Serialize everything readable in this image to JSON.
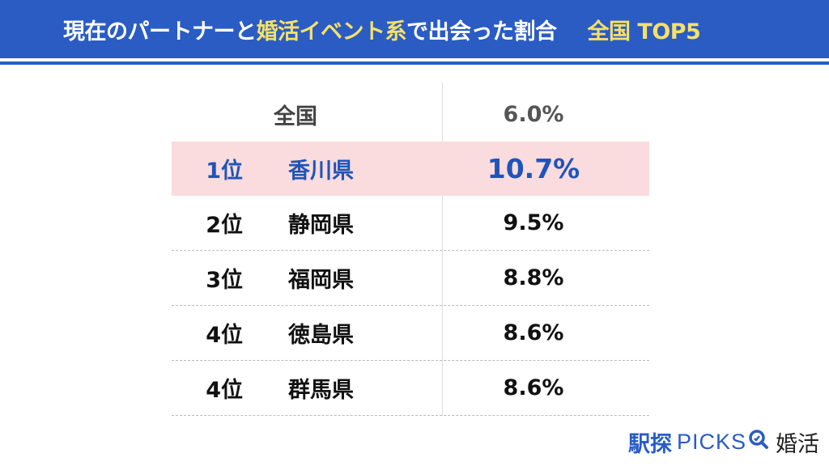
{
  "header": {
    "title_part1": "現在のパートナーと",
    "title_highlight": "婚活イベント系",
    "title_part2": "で出会った割合",
    "scope": "全国 TOP5"
  },
  "colors": {
    "header_bg": "#2a5cc4",
    "highlight_text": "#f5e06a",
    "top_row_bg": "#fadbde",
    "top_row_text": "#1f55b8"
  },
  "chart_data": {
    "type": "table",
    "title": "現在のパートナーと婚活イベント系で出会った割合　全国 TOP5",
    "national": {
      "label": "全国",
      "value": "6.0%"
    },
    "rows": [
      {
        "rank": "1位",
        "prefecture": "香川県",
        "value": "10.7%"
      },
      {
        "rank": "2位",
        "prefecture": "静岡県",
        "value": "9.5%"
      },
      {
        "rank": "3位",
        "prefecture": "福岡県",
        "value": "8.8%"
      },
      {
        "rank": "4位",
        "prefecture": "徳島県",
        "value": "8.6%"
      },
      {
        "rank": "4位",
        "prefecture": "群馬県",
        "value": "8.6%"
      }
    ]
  },
  "logo": {
    "brand": "駅探",
    "picks": "PICKS",
    "section": "婚活",
    "icon": "magnifier-icon"
  }
}
